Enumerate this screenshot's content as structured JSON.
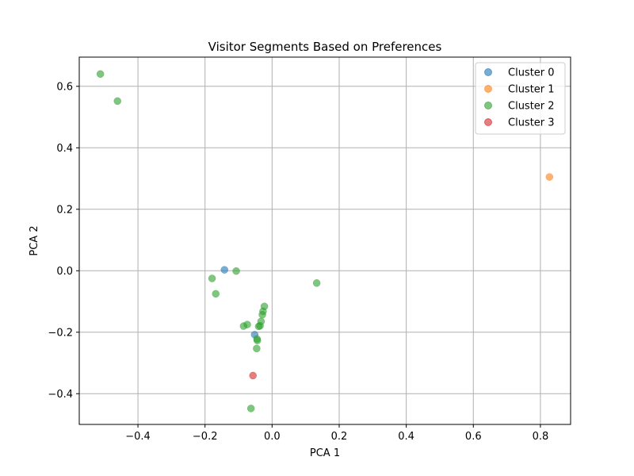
{
  "chart_data": {
    "type": "scatter",
    "title": "Visitor Segments Based on Preferences",
    "xlabel": "PCA 1",
    "ylabel": "PCA 2",
    "xlim": [
      -0.575,
      0.89
    ],
    "ylim": [
      -0.5,
      0.695
    ],
    "xticks": [
      -0.4,
      -0.2,
      0.0,
      0.2,
      0.4,
      0.6,
      0.8
    ],
    "xtick_labels": [
      "−0.4",
      "−0.2",
      "0.0",
      "0.2",
      "0.4",
      "0.6",
      "0.8"
    ],
    "yticks": [
      -0.4,
      -0.2,
      0.0,
      0.2,
      0.4,
      0.6
    ],
    "ytick_labels": [
      "−0.4",
      "−0.2",
      "0.0",
      "0.2",
      "0.4",
      "0.6"
    ],
    "grid": true,
    "legend_position": "top-right",
    "series": [
      {
        "name": "Cluster 0",
        "color": "#1f77b4",
        "points": [
          [
            -0.142,
            0.003
          ],
          [
            -0.052,
            -0.208
          ]
        ]
      },
      {
        "name": "Cluster 1",
        "color": "#ff7f0e",
        "points": [
          [
            0.827,
            0.305
          ]
        ]
      },
      {
        "name": "Cluster 2",
        "color": "#2ca02c",
        "points": [
          [
            -0.512,
            0.64
          ],
          [
            -0.461,
            0.552
          ],
          [
            -0.179,
            -0.025
          ],
          [
            -0.168,
            -0.075
          ],
          [
            -0.107,
            -0.001
          ],
          [
            0.133,
            -0.04
          ],
          [
            -0.023,
            -0.116
          ],
          [
            -0.027,
            -0.132
          ],
          [
            -0.029,
            -0.143
          ],
          [
            -0.033,
            -0.165
          ],
          [
            -0.036,
            -0.179
          ],
          [
            -0.04,
            -0.181
          ],
          [
            -0.045,
            -0.222
          ],
          [
            -0.044,
            -0.227
          ],
          [
            -0.046,
            -0.253
          ],
          [
            -0.085,
            -0.18
          ],
          [
            -0.074,
            -0.175
          ],
          [
            -0.063,
            -0.448
          ]
        ]
      },
      {
        "name": "Cluster 3",
        "color": "#d62728",
        "points": [
          [
            -0.057,
            -0.341
          ]
        ]
      }
    ]
  }
}
